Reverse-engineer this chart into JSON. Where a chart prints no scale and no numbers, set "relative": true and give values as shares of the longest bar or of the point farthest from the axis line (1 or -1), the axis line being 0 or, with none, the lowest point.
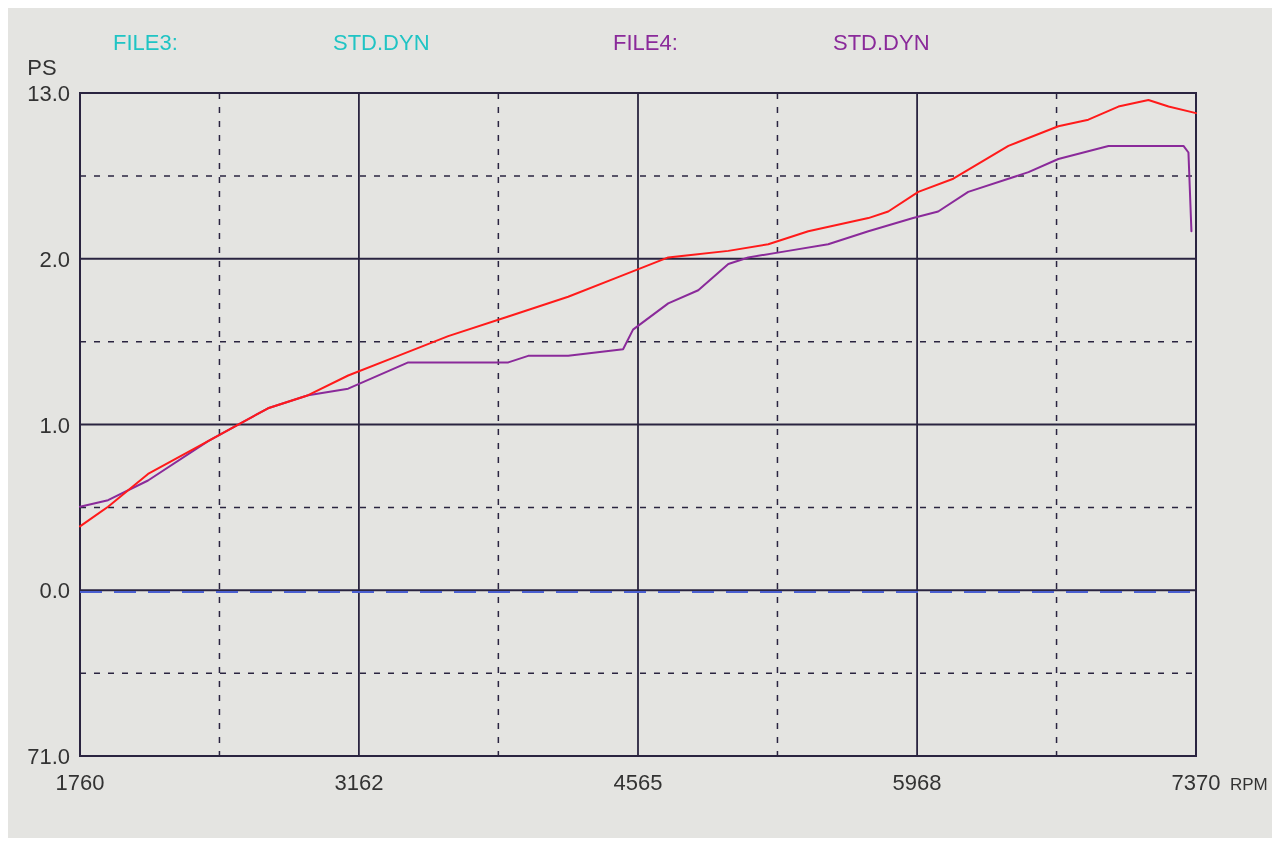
{
  "chart_data": {
    "type": "line",
    "xlabel": "RPM",
    "ylabel": "PS",
    "relative": true,
    "xlim": [
      1760,
      7370
    ],
    "xticks": [
      1760,
      {
        "value": 2461,
        "label": null
      },
      3162,
      {
        "value": 3863,
        "label": null
      },
      4565,
      {
        "value": 5266,
        "label": null
      },
      5968,
      {
        "value": 6669,
        "label": null
      },
      7370
    ],
    "grid": true,
    "legend": "top left",
    "marker": "none",
    "line_style": "solid",
    "annotations": [
      "STD.DYN",
      "STD.DYN",
      "13.0",
      "2.0",
      "1.0",
      "0.0",
      "71.0"
    ],
    "ref_lines": [
      {
        "axis": "y",
        "value": 0.25,
        "color": "#4a5fd0",
        "line_style": "dashed"
      }
    ],
    "series": [
      {
        "name": "FILE3:",
        "color": "#20c4c4"
      },
      {
        "name": "FILE4:",
        "color": "#8a2a9a",
        "x": [
          1760,
          1901,
          2102,
          2404,
          2705,
          2907,
          3108,
          3410,
          3712,
          3913,
          4013,
          4214,
          4490,
          4540,
          4717,
          4868,
          5019,
          5119,
          5320,
          5521,
          5723,
          5948,
          6074,
          6225,
          6427,
          6528,
          6678,
          6930,
          7131,
          7307,
          7332,
          7347
        ],
        "values": [
          0.38,
          0.39,
          0.42,
          0.48,
          0.53,
          0.55,
          0.56,
          0.6,
          0.6,
          0.6,
          0.61,
          0.61,
          0.62,
          0.65,
          0.69,
          0.71,
          0.75,
          0.76,
          0.77,
          0.78,
          0.8,
          0.82,
          0.83,
          0.86,
          0.88,
          0.89,
          0.91,
          0.93,
          0.93,
          0.93,
          0.92,
          0.8
        ]
      },
      {
        "color": "#ff1a1a",
        "x": [
          1760,
          1901,
          2102,
          2404,
          2705,
          2907,
          3108,
          3359,
          3611,
          3913,
          4214,
          4465,
          4717,
          5019,
          5220,
          5421,
          5723,
          5823,
          5974,
          6150,
          6427,
          6678,
          6829,
          6980,
          7131,
          7232,
          7370
        ],
        "values": [
          0.35,
          0.38,
          0.43,
          0.48,
          0.53,
          0.55,
          0.58,
          0.61,
          0.64,
          0.67,
          0.7,
          0.73,
          0.76,
          0.77,
          0.78,
          0.8,
          0.82,
          0.83,
          0.86,
          0.88,
          0.93,
          0.96,
          0.97,
          0.99,
          1,
          0.99,
          0.98
        ]
      }
    ]
  }
}
